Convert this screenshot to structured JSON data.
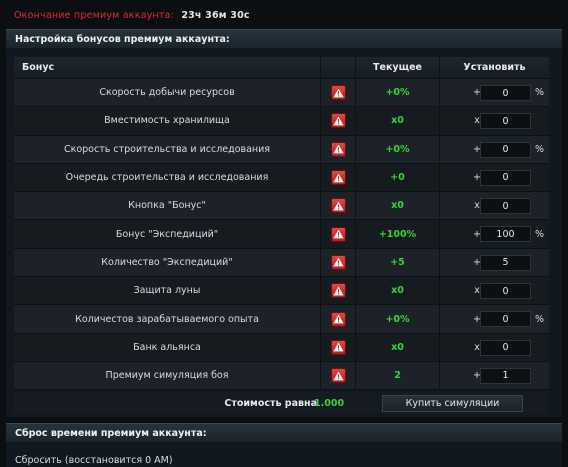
{
  "premium": {
    "label": "Окончание премиум аккаунта:",
    "time_left": "23ч 36м 30с"
  },
  "bonus_section": {
    "title": "Настройка бонусов премиум аккаунта:",
    "headers": {
      "bonus": "Бонус",
      "current": "Текущее",
      "set": "Установить"
    },
    "rows": [
      {
        "name": "Скорость добычи ресурсов",
        "current": "+0%",
        "op": "+",
        "value": "0",
        "unit": "%"
      },
      {
        "name": "Вместимость хранилища",
        "current": "x0",
        "op": "x",
        "value": "0",
        "unit": ""
      },
      {
        "name": "Скорость строительства и исследования",
        "current": "+0%",
        "op": "+",
        "value": "0",
        "unit": "%"
      },
      {
        "name": "Очередь строительства и исследования",
        "current": "+0",
        "op": "+",
        "value": "0",
        "unit": ""
      },
      {
        "name": "Кнопка \"Бонус\"",
        "current": "x0",
        "op": "x",
        "value": "0",
        "unit": ""
      },
      {
        "name": "Бонус \"Экспедиций\"",
        "current": "+100%",
        "op": "+",
        "value": "100",
        "unit": "%"
      },
      {
        "name": "Количество \"Экспедиций\"",
        "current": "+5",
        "op": "+",
        "value": "5",
        "unit": ""
      },
      {
        "name": "Защита луны",
        "current": "x0",
        "op": "x",
        "value": "0",
        "unit": ""
      },
      {
        "name": "Количестов зарабатываемого опыта",
        "current": "+0%",
        "op": "+",
        "value": "0",
        "unit": "%"
      },
      {
        "name": "Банк альянса",
        "current": "x0",
        "op": "x",
        "value": "0",
        "unit": ""
      },
      {
        "name": "Премиум симуляция боя",
        "current": "2",
        "op": "+",
        "value": "1",
        "unit": ""
      }
    ],
    "cost_label": "Стоимость равна",
    "cost_value": "1.000",
    "buy_button": "Купить симуляции",
    "warning_icon": "warning-triangle-icon",
    "colors": {
      "accent_green": "#3ad23a",
      "warning_red": "#d23030",
      "expiry_red": "#e02b2b"
    }
  },
  "reset_section": {
    "title": "Сброс времени премиум аккаунта:",
    "text": "Сбросить (восстановится 0 AM)"
  }
}
